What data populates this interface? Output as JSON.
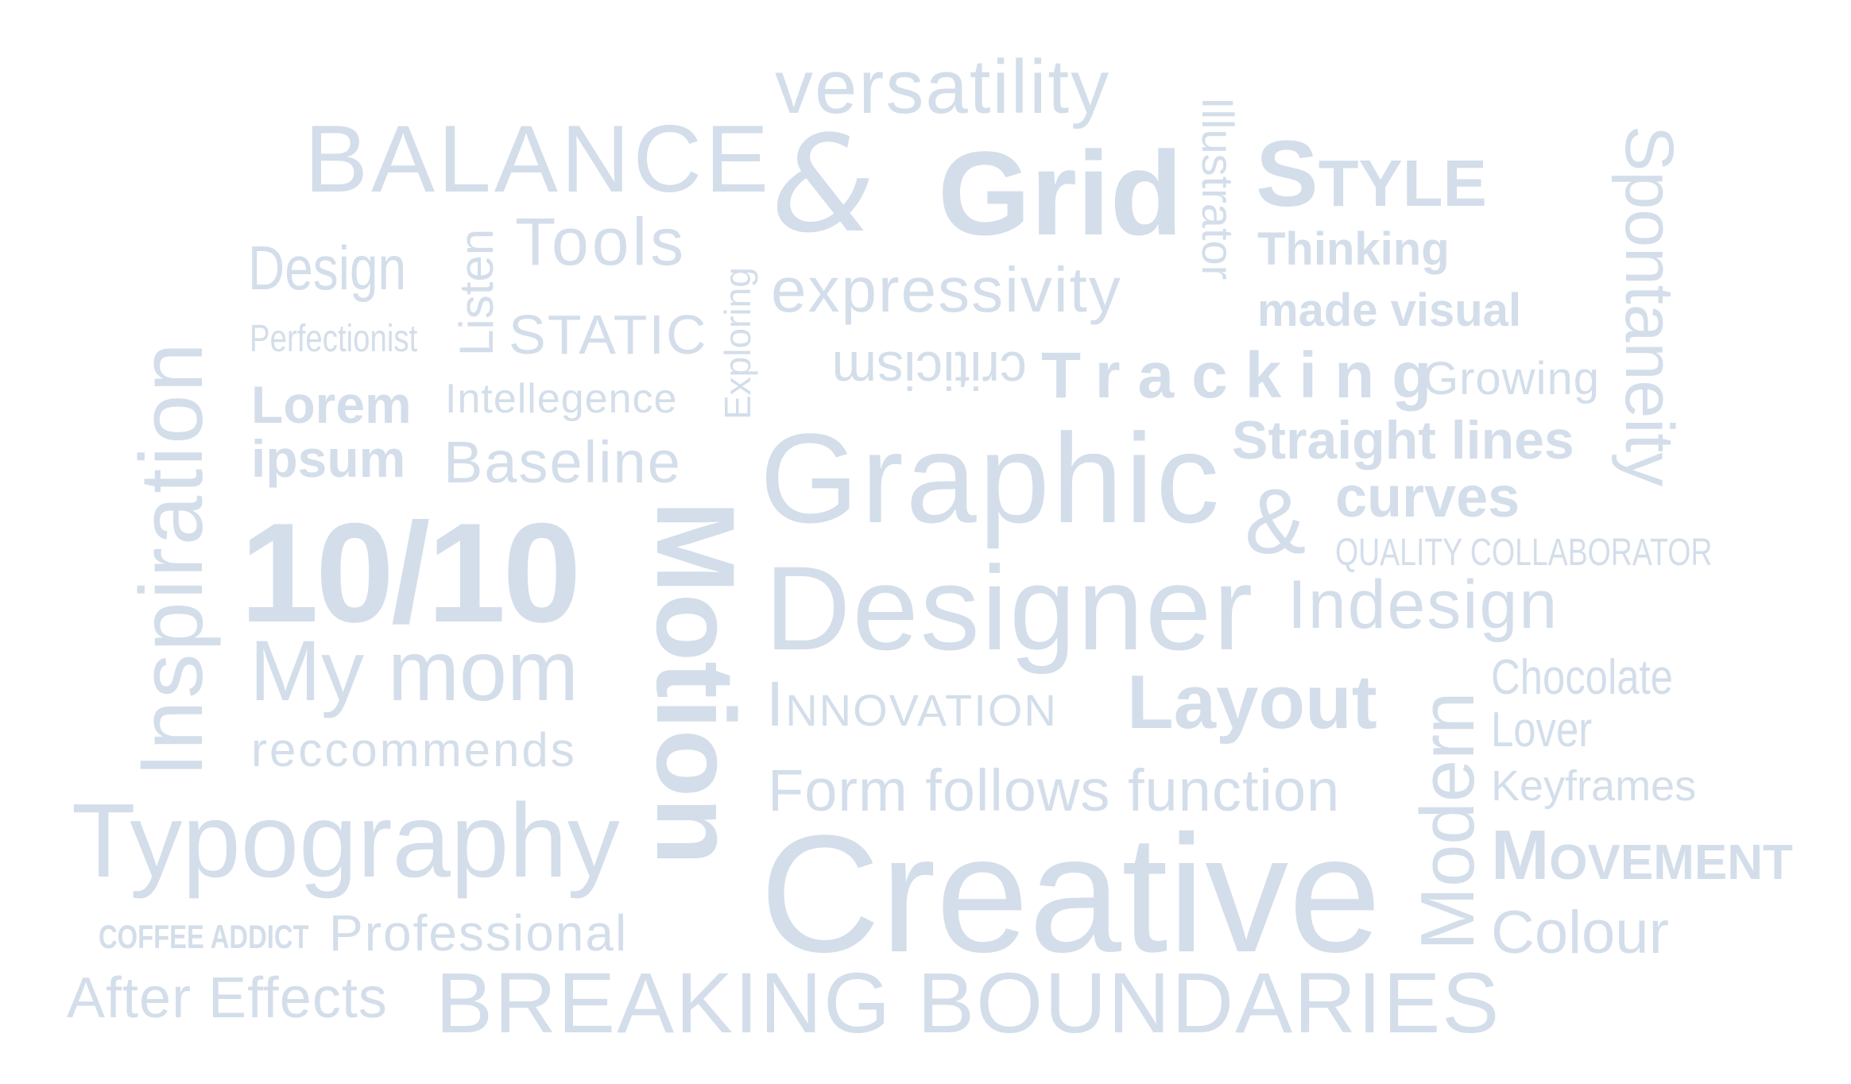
{
  "palette": {
    "text": "#d3deea",
    "background": "#ffffff"
  },
  "words": {
    "versatility": "versatility",
    "balance": "BALANCE",
    "ampersand_symbol": "&",
    "grid": "Grid",
    "illustrator": "Illustrator",
    "style": "Style",
    "spontaneity": "Spontaneity",
    "design": "Design",
    "listen": "Listen",
    "tools": "Tools",
    "exploring": "Exploring",
    "expressivity": "expressivity",
    "thinking": "Thinking",
    "made_visual": "made visual",
    "inspiration": "Inspiration",
    "perfectionist": "Perfectionist",
    "static": "STATIC",
    "criticism": "criticism",
    "tracking": "Tracking",
    "growing": "Growing",
    "lorem": "Lorem",
    "intellegence": "Intellegence",
    "straight_lines": "Straight lines",
    "ipsum": "ipsum",
    "baseline": "Baseline",
    "graphic": "Graphic",
    "ampersand": "&",
    "curves": "curves",
    "ten_ten": "10/10",
    "motion": "Motion",
    "quality_collaborator": "QUALITY COLLABORATOR",
    "designer": "Designer",
    "indesign": "Indesign",
    "my_mom": "My mom",
    "chocolate": "Chocolate",
    "lover": "Lover",
    "innovation": "Innovation",
    "layout": "Layout",
    "modern": "Modern",
    "reccommends": "reccommends",
    "keyframes": "Keyframes",
    "form_follows_function": "Form follows function",
    "typography": "Typography",
    "movement": "Movement",
    "creative": "Creative",
    "coffee_addict": "COFFEE ADDICT",
    "professional": "Professional",
    "colour": "Colour",
    "after_effects": "After Effects",
    "breaking_boundaries": "BREAKING BOUNDARIES"
  }
}
